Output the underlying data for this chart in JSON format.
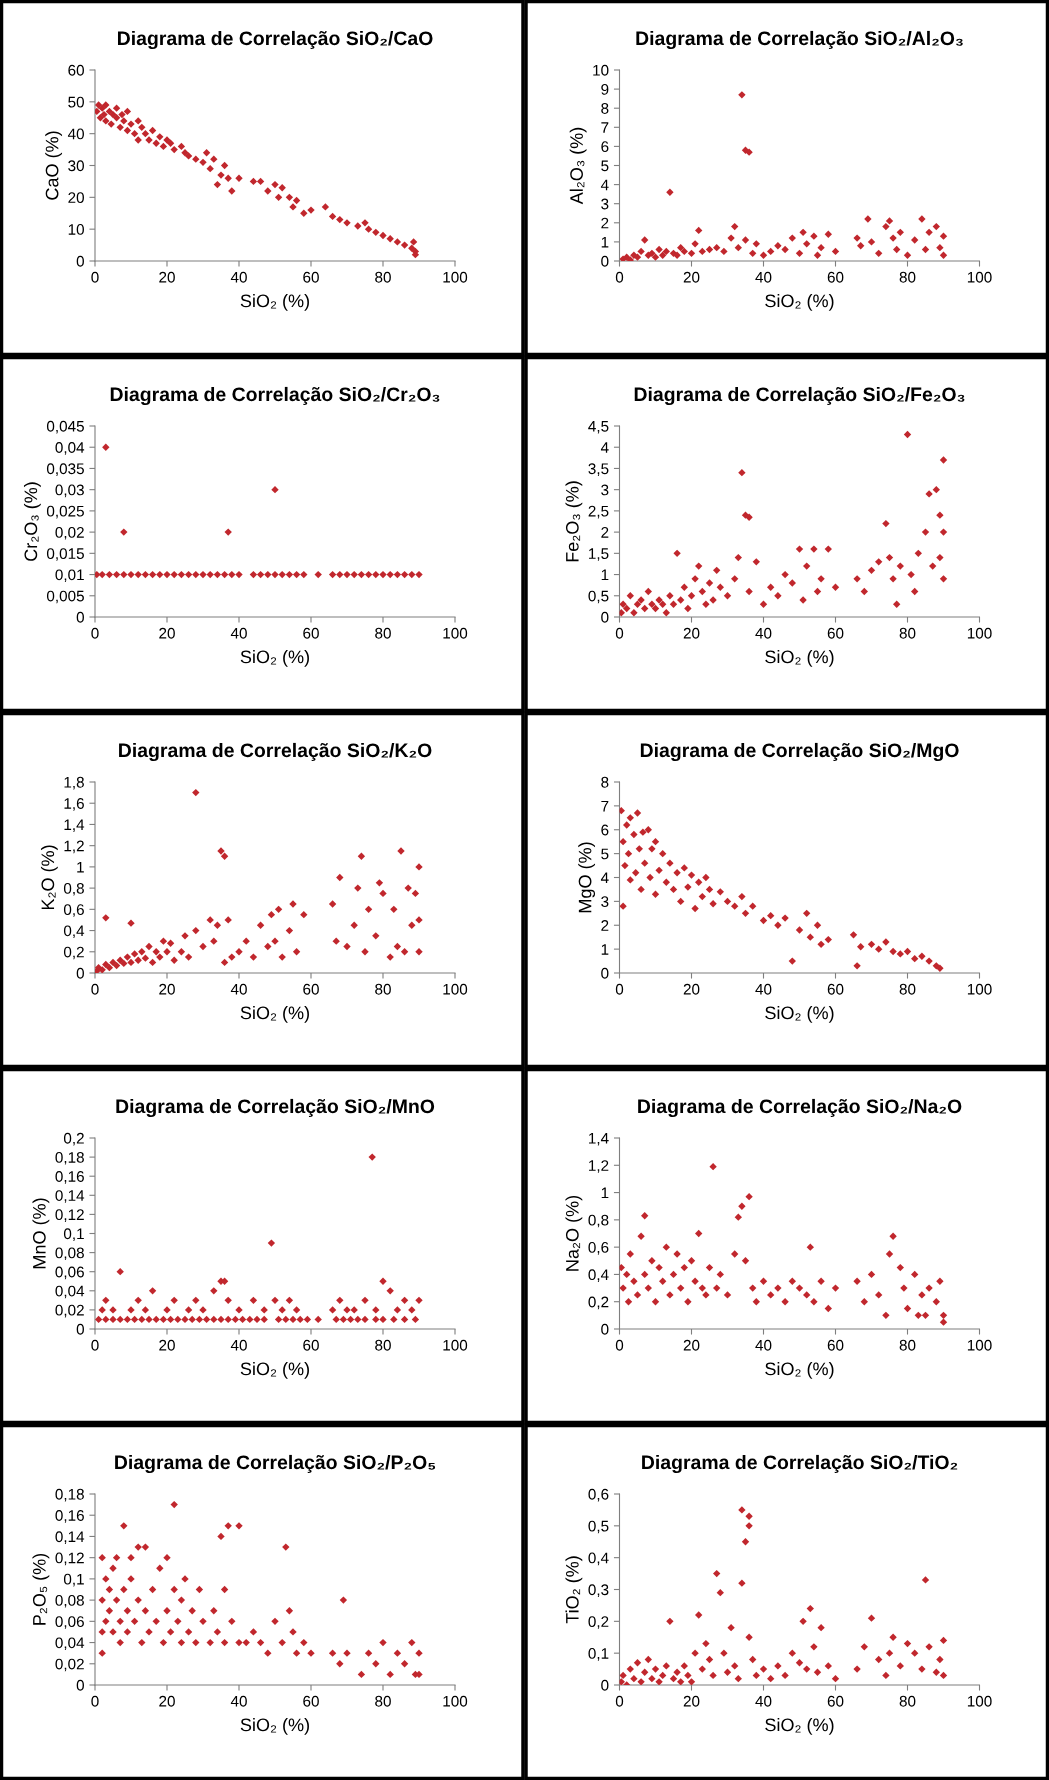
{
  "chart_data": [
    {
      "type": "scatter",
      "title": "Diagrama de Correlação SiO₂/CaO",
      "xlabel": "SiO₂ (%)",
      "ylabel": "CaO (%)",
      "color": "#c1272d",
      "marker": "diamond",
      "xlim": [
        0,
        100
      ],
      "xticks": [
        0,
        20,
        40,
        60,
        80,
        100
      ],
      "ylim": [
        0,
        60
      ],
      "yticks": [
        0,
        10,
        20,
        30,
        40,
        50,
        60
      ],
      "x": [
        0.5,
        1,
        1.5,
        2,
        2.5,
        3,
        3,
        4,
        4.5,
        5,
        6,
        6,
        7,
        7.5,
        8,
        9,
        9,
        10,
        11,
        12,
        12,
        13,
        14,
        15,
        16,
        17,
        18,
        19,
        20,
        21,
        22,
        24,
        25,
        26,
        28,
        30,
        31,
        32,
        33,
        34,
        35,
        36,
        37,
        38,
        40,
        44,
        46,
        48,
        50,
        51,
        52,
        54,
        55,
        56,
        58,
        60,
        64,
        66,
        68,
        70,
        73,
        75,
        76,
        78,
        80,
        82,
        84,
        86,
        88,
        88.5,
        89,
        89
      ],
      "values": [
        47,
        49,
        45,
        48,
        46,
        44,
        49,
        47,
        43,
        46,
        45,
        48,
        42,
        46,
        44,
        41,
        47,
        43,
        40,
        44,
        38,
        42,
        40,
        38,
        41,
        37,
        39,
        36,
        38,
        37,
        35,
        36,
        34,
        33,
        32,
        31,
        34,
        29,
        32,
        24,
        27,
        30,
        26,
        22,
        26,
        25,
        25,
        22,
        24,
        20,
        23,
        20,
        17,
        19,
        15,
        16,
        17,
        14,
        13,
        12,
        11,
        12,
        10,
        9,
        8,
        7,
        6,
        5,
        4,
        6,
        2,
        3
      ]
    },
    {
      "type": "scatter",
      "title": "Diagrama de Correlação SiO₂/Al₂O₃",
      "xlabel": "SiO₂ (%)",
      "ylabel": "Al₂O₃ (%)",
      "color": "#c1272d",
      "marker": "diamond",
      "xlim": [
        0,
        100
      ],
      "xticks": [
        0,
        20,
        40,
        60,
        80,
        100
      ],
      "ylim": [
        0,
        10
      ],
      "yticks": [
        0,
        1,
        2,
        3,
        4,
        5,
        6,
        7,
        8,
        9,
        10
      ],
      "x": [
        1,
        2,
        3,
        4,
        5,
        6,
        7,
        8,
        9,
        10,
        11,
        12,
        13,
        14,
        15,
        16,
        17,
        18,
        20,
        21,
        22,
        23,
        25,
        27,
        29,
        31,
        32,
        33,
        34,
        35,
        36,
        35,
        37,
        38,
        40,
        42,
        44,
        46,
        48,
        50,
        51,
        52,
        54,
        55,
        56,
        58,
        60,
        66,
        67,
        69,
        70,
        72,
        74,
        75,
        76,
        77,
        78,
        80,
        82,
        84,
        85,
        86,
        88,
        89,
        90,
        90
      ],
      "values": [
        0.1,
        0.2,
        0.05,
        0.3,
        0.2,
        0.5,
        1.1,
        0.3,
        0.4,
        0.2,
        0.6,
        0.3,
        0.5,
        3.6,
        0.4,
        0.3,
        0.7,
        0.5,
        0.4,
        0.9,
        1.6,
        0.5,
        0.6,
        0.7,
        0.5,
        1.2,
        1.8,
        0.7,
        8.7,
        5.8,
        5.7,
        1.1,
        0.4,
        0.9,
        0.3,
        0.5,
        0.8,
        0.6,
        1.2,
        0.4,
        1.5,
        0.9,
        1.3,
        0.3,
        0.7,
        1.4,
        0.5,
        1.2,
        0.8,
        2.2,
        1.0,
        0.4,
        1.8,
        2.1,
        1.2,
        0.6,
        1.5,
        0.3,
        1.1,
        2.2,
        0.6,
        1.5,
        1.8,
        0.7,
        1.3,
        0.3
      ]
    },
    {
      "type": "scatter",
      "title": "Diagrama de Correlação SiO₂/Cr₂O₃",
      "xlabel": "SiO₂ (%)",
      "ylabel": "Cr₂O₃ (%)",
      "color": "#c1272d",
      "marker": "diamond",
      "xlim": [
        0,
        100
      ],
      "xticks": [
        0,
        20,
        40,
        60,
        80,
        100
      ],
      "ylim": [
        0,
        0.045
      ],
      "yticks": [
        0,
        {
          "value": 0.005,
          "label": "0,005"
        },
        {
          "value": 0.01,
          "label": "0,01"
        },
        {
          "value": 0.015,
          "label": "0,015"
        },
        {
          "value": 0.02,
          "label": "0,02"
        },
        {
          "value": 0.025,
          "label": "0,025"
        },
        {
          "value": 0.03,
          "label": "0,03"
        },
        {
          "value": 0.035,
          "label": "0,035"
        },
        {
          "value": 0.04,
          "label": "0,04"
        },
        {
          "value": 0.045,
          "label": "0,045"
        }
      ],
      "x": [
        0.5,
        2,
        4,
        6,
        8,
        10,
        12,
        14,
        16,
        18,
        20,
        22,
        24,
        26,
        28,
        30,
        32,
        34,
        36,
        38,
        40,
        44,
        46,
        48,
        50,
        52,
        54,
        56,
        58,
        62,
        66,
        68,
        70,
        72,
        74,
        76,
        78,
        80,
        82,
        84,
        86,
        88,
        90,
        3,
        8,
        37,
        50
      ],
      "values": [
        0.01,
        0.01,
        0.01,
        0.01,
        0.01,
        0.01,
        0.01,
        0.01,
        0.01,
        0.01,
        0.01,
        0.01,
        0.01,
        0.01,
        0.01,
        0.01,
        0.01,
        0.01,
        0.01,
        0.01,
        0.01,
        0.01,
        0.01,
        0.01,
        0.01,
        0.01,
        0.01,
        0.01,
        0.01,
        0.01,
        0.01,
        0.01,
        0.01,
        0.01,
        0.01,
        0.01,
        0.01,
        0.01,
        0.01,
        0.01,
        0.01,
        0.01,
        0.01,
        0.04,
        0.02,
        0.02,
        0.03
      ]
    },
    {
      "type": "scatter",
      "title": "Diagrama de Correlação SiO₂/Fe₂O₃",
      "xlabel": "SiO₂ (%)",
      "ylabel": "Fe₂O₃ (%)",
      "color": "#c1272d",
      "marker": "diamond",
      "xlim": [
        0,
        100
      ],
      "xticks": [
        0,
        20,
        40,
        60,
        80,
        100
      ],
      "ylim": [
        0,
        4.5
      ],
      "yticks": [
        0,
        {
          "value": 0.5,
          "label": "0,5"
        },
        1,
        {
          "value": 1.5,
          "label": "1,5"
        },
        2,
        {
          "value": 2.5,
          "label": "2,5"
        },
        3,
        {
          "value": 3.5,
          "label": "3,5"
        },
        4,
        {
          "value": 4.5,
          "label": "4,5"
        }
      ],
      "x": [
        0.5,
        1,
        2,
        3,
        4,
        5,
        6,
        7,
        8,
        9,
        10,
        11,
        12,
        13,
        14,
        15,
        16,
        17,
        18,
        19,
        20,
        21,
        22,
        23,
        24,
        25,
        26,
        27,
        28,
        30,
        32,
        33,
        34,
        35,
        36,
        36,
        38,
        40,
        42,
        44,
        46,
        48,
        50,
        51,
        52,
        54,
        55,
        56,
        58,
        60,
        66,
        68,
        70,
        72,
        74,
        75,
        76,
        77,
        78,
        80,
        81,
        82,
        83,
        85,
        86,
        87,
        88,
        89,
        89,
        90,
        90,
        90
      ],
      "values": [
        0.1,
        0.3,
        0.2,
        0.5,
        0.1,
        0.3,
        0.4,
        0.2,
        0.6,
        0.3,
        0.2,
        0.4,
        0.3,
        0.1,
        0.5,
        0.3,
        1.5,
        0.4,
        0.7,
        0.2,
        0.5,
        0.9,
        1.2,
        0.6,
        0.3,
        0.8,
        0.4,
        1.1,
        0.7,
        0.5,
        0.9,
        1.4,
        3.4,
        2.4,
        2.35,
        0.6,
        1.3,
        0.3,
        0.7,
        0.5,
        1.0,
        0.8,
        1.6,
        0.4,
        1.2,
        1.6,
        0.6,
        0.9,
        1.6,
        0.7,
        0.9,
        0.6,
        1.1,
        1.3,
        2.2,
        1.4,
        0.9,
        0.3,
        1.2,
        4.3,
        1.0,
        0.6,
        1.5,
        2.0,
        2.9,
        1.2,
        3.0,
        2.4,
        1.4,
        3.7,
        2.0,
        0.9
      ]
    },
    {
      "type": "scatter",
      "title": "Diagrama de Correlação SiO₂/K₂O",
      "xlabel": "SiO₂ (%)",
      "ylabel": "K₂O (%)",
      "color": "#c1272d",
      "marker": "diamond",
      "xlim": [
        0,
        100
      ],
      "xticks": [
        0,
        20,
        40,
        60,
        80,
        100
      ],
      "ylim": [
        0,
        1.8
      ],
      "yticks": [
        0,
        {
          "value": 0.2,
          "label": "0,2"
        },
        {
          "value": 0.4,
          "label": "0,4"
        },
        {
          "value": 0.6,
          "label": "0,6"
        },
        {
          "value": 0.8,
          "label": "0,8"
        },
        1,
        {
          "value": 1.2,
          "label": "1,2"
        },
        {
          "value": 1.4,
          "label": "1,4"
        },
        {
          "value": 1.6,
          "label": "1,6"
        },
        {
          "value": 1.8,
          "label": "1,8"
        }
      ],
      "x": [
        0.5,
        1,
        2,
        3,
        3,
        4,
        5,
        6,
        7,
        8,
        9,
        10,
        10,
        11,
        12,
        13,
        14,
        15,
        16,
        17,
        18,
        19,
        20,
        21,
        22,
        24,
        25,
        26,
        28,
        28,
        30,
        32,
        33,
        34,
        35,
        36,
        36,
        37,
        38,
        40,
        42,
        44,
        46,
        48,
        49,
        50,
        51,
        52,
        54,
        55,
        56,
        58,
        66,
        67,
        68,
        70,
        72,
        73,
        74,
        75,
        76,
        78,
        79,
        80,
        82,
        83,
        84,
        85,
        86,
        87,
        88,
        89,
        90,
        90,
        90
      ],
      "values": [
        0.02,
        0.05,
        0.03,
        0.52,
        0.08,
        0.05,
        0.1,
        0.07,
        0.12,
        0.09,
        0.15,
        0.47,
        0.1,
        0.18,
        0.12,
        0.2,
        0.14,
        0.25,
        0.1,
        0.2,
        0.15,
        0.3,
        0.2,
        0.28,
        0.12,
        0.2,
        0.35,
        0.15,
        1.7,
        0.4,
        0.25,
        0.5,
        0.3,
        0.45,
        1.15,
        1.1,
        0.1,
        0.5,
        0.15,
        0.2,
        0.3,
        0.15,
        0.45,
        0.25,
        0.55,
        0.3,
        0.6,
        0.15,
        0.4,
        0.65,
        0.2,
        0.55,
        0.65,
        0.3,
        0.9,
        0.25,
        0.45,
        0.8,
        1.1,
        0.2,
        0.6,
        0.35,
        0.85,
        0.75,
        0.15,
        0.6,
        0.25,
        1.15,
        0.2,
        0.8,
        0.45,
        0.75,
        1.0,
        0.2,
        0.5
      ]
    },
    {
      "type": "scatter",
      "title": "Diagrama de Correlação SiO₂/MgO",
      "xlabel": "SiO₂ (%)",
      "ylabel": "MgO (%)",
      "color": "#c1272d",
      "marker": "diamond",
      "xlim": [
        0,
        100
      ],
      "xticks": [
        0,
        20,
        40,
        60,
        80,
        100
      ],
      "ylim": [
        0,
        8
      ],
      "yticks": [
        0,
        1,
        2,
        3,
        4,
        5,
        6,
        7,
        8
      ],
      "x": [
        0.5,
        1,
        1,
        1.5,
        2,
        2.5,
        3,
        3,
        4,
        4.5,
        5,
        5.5,
        6,
        6.5,
        7,
        8,
        8.5,
        9,
        10,
        10,
        11,
        12,
        13,
        14,
        15,
        16,
        17,
        18,
        19,
        20,
        21,
        22,
        23,
        24,
        25,
        26,
        28,
        30,
        32,
        34,
        35,
        37,
        40,
        42,
        44,
        46,
        48,
        50,
        52,
        53,
        55,
        56,
        58,
        65,
        66,
        67,
        70,
        72,
        74,
        76,
        78,
        80,
        82,
        84,
        86,
        88,
        89
      ],
      "values": [
        6.8,
        5.5,
        2.8,
        4.5,
        6.2,
        5.0,
        6.5,
        3.9,
        5.8,
        4.2,
        6.7,
        5.2,
        3.5,
        5.9,
        4.6,
        6.0,
        4.0,
        5.2,
        3.3,
        5.5,
        4.3,
        5.0,
        3.8,
        4.6,
        3.5,
        4.2,
        3.0,
        4.4,
        3.6,
        4.1,
        2.7,
        3.8,
        3.2,
        4.0,
        3.5,
        2.9,
        3.4,
        3.0,
        2.8,
        3.2,
        2.5,
        2.8,
        2.2,
        2.4,
        2.0,
        2.3,
        0.5,
        1.8,
        2.5,
        1.5,
        2.0,
        1.2,
        1.4,
        1.6,
        0.3,
        1.1,
        1.2,
        1.0,
        1.3,
        0.9,
        0.8,
        0.9,
        0.6,
        0.7,
        0.5,
        0.3,
        0.2
      ]
    },
    {
      "type": "scatter",
      "title": "Diagrama de Correlação SiO₂/MnO",
      "xlabel": "SiO₂ (%)",
      "ylabel": "MnO (%)",
      "color": "#c1272d",
      "marker": "diamond",
      "xlim": [
        0,
        100
      ],
      "xticks": [
        0,
        20,
        40,
        60,
        80,
        100
      ],
      "ylim": [
        0,
        0.2
      ],
      "yticks": [
        0,
        {
          "value": 0.02,
          "label": "0,02"
        },
        {
          "value": 0.04,
          "label": "0,04"
        },
        {
          "value": 0.06,
          "label": "0,06"
        },
        {
          "value": 0.08,
          "label": "0,08"
        },
        {
          "value": 0.1,
          "label": "0,1"
        },
        {
          "value": 0.12,
          "label": "0,12"
        },
        {
          "value": 0.14,
          "label": "0,14"
        },
        {
          "value": 0.16,
          "label": "0,16"
        },
        {
          "value": 0.18,
          "label": "0,18"
        },
        {
          "value": 0.2,
          "label": "0,2"
        }
      ],
      "x": [
        1,
        3,
        5,
        7,
        9,
        11,
        13,
        15,
        17,
        19,
        21,
        23,
        25,
        27,
        29,
        31,
        33,
        35,
        37,
        39,
        41,
        43,
        45,
        47,
        51,
        53,
        55,
        57,
        59,
        62,
        67,
        69,
        71,
        73,
        75,
        78,
        80,
        83,
        86,
        89,
        2,
        3,
        5,
        7,
        10,
        12,
        14,
        16,
        20,
        22,
        26,
        28,
        30,
        33,
        35,
        36,
        37,
        40,
        44,
        47,
        49,
        50,
        52,
        54,
        56,
        66,
        68,
        70,
        72,
        75,
        77,
        78,
        80,
        82,
        84,
        86,
        88,
        90
      ],
      "values": [
        0.01,
        0.01,
        0.01,
        0.01,
        0.01,
        0.01,
        0.01,
        0.01,
        0.01,
        0.01,
        0.01,
        0.01,
        0.01,
        0.01,
        0.01,
        0.01,
        0.01,
        0.01,
        0.01,
        0.01,
        0.01,
        0.01,
        0.01,
        0.01,
        0.01,
        0.01,
        0.01,
        0.01,
        0.01,
        0.01,
        0.01,
        0.01,
        0.01,
        0.01,
        0.01,
        0.01,
        0.01,
        0.01,
        0.01,
        0.01,
        0.02,
        0.03,
        0.02,
        0.06,
        0.02,
        0.03,
        0.02,
        0.04,
        0.02,
        0.03,
        0.02,
        0.03,
        0.02,
        0.04,
        0.05,
        0.05,
        0.03,
        0.02,
        0.03,
        0.02,
        0.09,
        0.03,
        0.02,
        0.03,
        0.02,
        0.02,
        0.03,
        0.02,
        0.02,
        0.03,
        0.18,
        0.02,
        0.05,
        0.04,
        0.02,
        0.03,
        0.02,
        0.03
      ]
    },
    {
      "type": "scatter",
      "title": "Diagrama de Correlação SiO₂/Na₂O",
      "xlabel": "SiO₂ (%)",
      "ylabel": "Na₂O (%)",
      "color": "#c1272d",
      "marker": "diamond",
      "xlim": [
        0,
        100
      ],
      "xticks": [
        0,
        20,
        40,
        60,
        80,
        100
      ],
      "ylim": [
        0,
        1.4
      ],
      "yticks": [
        0,
        {
          "value": 0.2,
          "label": "0,2"
        },
        {
          "value": 0.4,
          "label": "0,4"
        },
        {
          "value": 0.6,
          "label": "0,6"
        },
        {
          "value": 0.8,
          "label": "0,8"
        },
        1,
        {
          "value": 1.2,
          "label": "1,2"
        },
        {
          "value": 1.4,
          "label": "1,4"
        }
      ],
      "x": [
        0.5,
        1,
        2,
        2.5,
        3,
        4,
        5,
        6,
        7,
        7,
        8,
        9,
        10,
        11,
        12,
        13,
        14,
        15,
        16,
        17,
        18,
        19,
        20,
        21,
        22,
        23,
        24,
        25,
        26,
        27,
        28,
        30,
        32,
        33,
        34,
        35,
        36,
        37,
        38,
        40,
        42,
        44,
        46,
        48,
        50,
        52,
        53,
        54,
        56,
        58,
        60,
        66,
        68,
        70,
        72,
        74,
        75,
        76,
        78,
        79,
        80,
        82,
        83,
        84,
        85,
        86,
        88,
        89,
        90,
        90
      ],
      "values": [
        0.45,
        0.3,
        0.4,
        0.2,
        0.55,
        0.35,
        0.25,
        0.68,
        0.83,
        0.4,
        0.3,
        0.5,
        0.2,
        0.45,
        0.35,
        0.6,
        0.25,
        0.4,
        0.55,
        0.3,
        0.45,
        0.2,
        0.5,
        0.35,
        0.7,
        0.3,
        0.25,
        0.45,
        1.19,
        0.3,
        0.4,
        0.25,
        0.55,
        0.82,
        0.9,
        0.5,
        0.97,
        0.3,
        0.2,
        0.35,
        0.25,
        0.3,
        0.2,
        0.35,
        0.3,
        0.25,
        0.6,
        0.2,
        0.35,
        0.15,
        0.3,
        0.35,
        0.2,
        0.4,
        0.25,
        0.1,
        0.55,
        0.68,
        0.45,
        0.3,
        0.15,
        0.4,
        0.1,
        0.25,
        0.1,
        0.3,
        0.2,
        0.35,
        0.1,
        0.05
      ]
    },
    {
      "type": "scatter",
      "title": "Diagrama de Correlação SiO₂/P₂O₅",
      "xlabel": "SiO₂ (%)",
      "ylabel": "P₂O₅ (%)",
      "color": "#c1272d",
      "marker": "diamond",
      "xlim": [
        0,
        100
      ],
      "xticks": [
        0,
        20,
        40,
        60,
        80,
        100
      ],
      "ylim": [
        0,
        0.18
      ],
      "yticks": [
        0,
        {
          "value": 0.02,
          "label": "0,02"
        },
        {
          "value": 0.04,
          "label": "0,04"
        },
        {
          "value": 0.06,
          "label": "0,06"
        },
        {
          "value": 0.08,
          "label": "0,08"
        },
        {
          "value": 0.1,
          "label": "0,1"
        },
        {
          "value": 0.12,
          "label": "0,12"
        },
        {
          "value": 0.14,
          "label": "0,14"
        },
        {
          "value": 0.16,
          "label": "0,16"
        },
        {
          "value": 0.18,
          "label": "0,18"
        }
      ],
      "x": [
        2,
        2,
        2,
        2,
        3,
        3,
        4,
        4,
        5,
        5,
        6,
        6,
        7,
        7,
        8,
        8,
        9,
        9,
        10,
        10,
        11,
        12,
        12,
        13,
        14,
        14,
        15,
        16,
        17,
        18,
        19,
        20,
        20,
        21,
        22,
        22,
        23,
        24,
        24,
        25,
        26,
        27,
        28,
        29,
        30,
        32,
        33,
        34,
        35,
        36,
        36,
        37,
        38,
        40,
        40,
        42,
        44,
        46,
        48,
        50,
        52,
        53,
        54,
        55,
        56,
        58,
        60,
        66,
        68,
        69,
        70,
        74,
        76,
        78,
        80,
        82,
        84,
        86,
        88,
        89,
        90,
        90
      ],
      "values": [
        0.03,
        0.05,
        0.08,
        0.12,
        0.06,
        0.1,
        0.07,
        0.09,
        0.05,
        0.11,
        0.08,
        0.12,
        0.04,
        0.06,
        0.09,
        0.15,
        0.05,
        0.07,
        0.1,
        0.12,
        0.06,
        0.08,
        0.13,
        0.04,
        0.07,
        0.13,
        0.05,
        0.09,
        0.06,
        0.11,
        0.04,
        0.07,
        0.12,
        0.05,
        0.17,
        0.09,
        0.06,
        0.04,
        0.08,
        0.1,
        0.05,
        0.07,
        0.04,
        0.09,
        0.06,
        0.04,
        0.07,
        0.05,
        0.14,
        0.04,
        0.09,
        0.15,
        0.06,
        0.15,
        0.04,
        0.04,
        0.05,
        0.04,
        0.03,
        0.06,
        0.04,
        0.13,
        0.07,
        0.05,
        0.03,
        0.04,
        0.03,
        0.03,
        0.02,
        0.08,
        0.03,
        0.01,
        0.03,
        0.02,
        0.04,
        0.01,
        0.03,
        0.02,
        0.04,
        0.01,
        0.01,
        0.03
      ]
    },
    {
      "type": "scatter",
      "title": "Diagrama de Correlação SiO₂/TiO₂",
      "xlabel": "SiO₂ (%)",
      "ylabel": "TiO₂ (%)",
      "color": "#c1272d",
      "marker": "diamond",
      "xlim": [
        0,
        100
      ],
      "xticks": [
        0,
        20,
        40,
        60,
        80,
        100
      ],
      "ylim": [
        0,
        0.6
      ],
      "yticks": [
        0,
        {
          "value": 0.1,
          "label": "0,1"
        },
        {
          "value": 0.2,
          "label": "0,2"
        },
        {
          "value": 0.3,
          "label": "0,3"
        },
        {
          "value": 0.4,
          "label": "0,4"
        },
        {
          "value": 0.5,
          "label": "0,5"
        },
        {
          "value": 0.6,
          "label": "0,6"
        }
      ],
      "x": [
        0.5,
        1,
        2,
        3,
        4,
        5,
        6,
        7,
        8,
        9,
        10,
        11,
        12,
        13,
        14,
        15,
        16,
        17,
        18,
        19,
        20,
        21,
        22,
        23,
        24,
        25,
        26,
        27,
        28,
        29,
        30,
        31,
        32,
        33,
        34,
        34,
        35,
        36,
        36,
        36,
        37,
        38,
        40,
        42,
        44,
        46,
        48,
        50,
        51,
        52,
        53,
        54,
        55,
        56,
        58,
        60,
        66,
        68,
        70,
        72,
        74,
        75,
        76,
        78,
        80,
        82,
        84,
        85,
        86,
        88,
        89,
        90,
        90
      ],
      "values": [
        0.01,
        0.03,
        0.0,
        0.05,
        0.02,
        0.07,
        0.01,
        0.04,
        0.08,
        0.02,
        0.05,
        0.01,
        0.03,
        0.06,
        0.2,
        0.02,
        0.04,
        0.01,
        0.06,
        0.03,
        0.01,
        0.1,
        0.22,
        0.05,
        0.13,
        0.08,
        0.03,
        0.35,
        0.29,
        0.1,
        0.04,
        0.18,
        0.06,
        0.02,
        0.55,
        0.32,
        0.45,
        0.53,
        0.5,
        0.15,
        0.08,
        0.03,
        0.05,
        0.02,
        0.06,
        0.03,
        0.1,
        0.07,
        0.2,
        0.05,
        0.24,
        0.12,
        0.04,
        0.18,
        0.06,
        0.02,
        0.05,
        0.12,
        0.21,
        0.08,
        0.03,
        0.1,
        0.15,
        0.06,
        0.13,
        0.1,
        0.05,
        0.33,
        0.12,
        0.04,
        0.08,
        0.14,
        0.03
      ]
    }
  ]
}
